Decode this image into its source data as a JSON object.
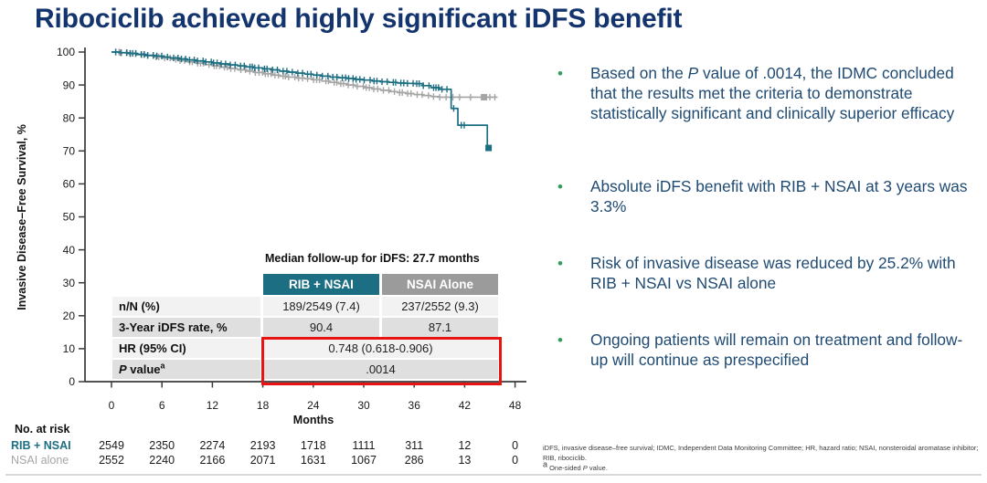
{
  "slide": {
    "title": "Ribociclib achieved highly significant iDFS benefit"
  },
  "colors": {
    "title_navy": "#14346E",
    "bullet_text_navy": "#1F4A72",
    "bullet_dot_green": "#2F9E5F",
    "rib_teal": "#1C6E82",
    "nsai_gray": "#A5A5A5",
    "header_gray": "#9B9B9B",
    "row_light": "#F2F2F2",
    "row_dark": "#DFDFDF",
    "highlight_red": "#E81313",
    "axis_black": "#3A3A3A"
  },
  "chart_data": {
    "type": "line",
    "subtype": "kaplan-meier-step",
    "title": "",
    "xlabel": "Months",
    "ylabel": "Invasive Disease–Free Survival, %",
    "xlim": [
      0,
      48
    ],
    "ylim": [
      0,
      100
    ],
    "xticks": [
      0,
      6,
      12,
      18,
      24,
      30,
      36,
      42,
      48
    ],
    "yticks": [
      0,
      10,
      20,
      30,
      40,
      50,
      60,
      70,
      80,
      90,
      100
    ],
    "grid": false,
    "legend_position": "none",
    "series": [
      {
        "name": "NSAI alone",
        "color": "#A5A5A5",
        "steps": [
          [
            0,
            100
          ],
          [
            1,
            99.8
          ],
          [
            2,
            99.5
          ],
          [
            3,
            99.2
          ],
          [
            4,
            98.9
          ],
          [
            5,
            98.5
          ],
          [
            6,
            98.2
          ],
          [
            7,
            97.8
          ],
          [
            8,
            97.4
          ],
          [
            9,
            97.0
          ],
          [
            10,
            96.6
          ],
          [
            11,
            96.2
          ],
          [
            12,
            95.8
          ],
          [
            13,
            95.4
          ],
          [
            14,
            95.0
          ],
          [
            15,
            94.6
          ],
          [
            16,
            94.2
          ],
          [
            17,
            93.8
          ],
          [
            18,
            93.4
          ],
          [
            19,
            93.0
          ],
          [
            20,
            92.7
          ],
          [
            21,
            92.4
          ],
          [
            22,
            92.1
          ],
          [
            23,
            91.9
          ],
          [
            24,
            91.6
          ],
          [
            25,
            91.2
          ],
          [
            26,
            90.8
          ],
          [
            27,
            90.4
          ],
          [
            28,
            90.0
          ],
          [
            29,
            89.6
          ],
          [
            30,
            89.2
          ],
          [
            31,
            88.8
          ],
          [
            32,
            88.4
          ],
          [
            33,
            88.0
          ],
          [
            34,
            87.7
          ],
          [
            35,
            87.4
          ],
          [
            36,
            87.1
          ],
          [
            37,
            86.8
          ],
          [
            38,
            86.5
          ],
          [
            39,
            86.3
          ],
          [
            45.8,
            86.3
          ]
        ],
        "censor_dense_range": [
          0.5,
          39.2
        ],
        "censor_tail_months": [
          39.8,
          40.6,
          41.4,
          42.7,
          45.0,
          45.6
        ],
        "end_marker": {
          "month": 44.3,
          "value": 86.3
        },
        "value_at_36_months_pct": 87.1
      },
      {
        "name": "RIB + NSAI",
        "color": "#1C6E82",
        "steps": [
          [
            0,
            100
          ],
          [
            1,
            99.8
          ],
          [
            2,
            99.6
          ],
          [
            3,
            99.3
          ],
          [
            4,
            99.0
          ],
          [
            5,
            98.8
          ],
          [
            6,
            98.5
          ],
          [
            7,
            98.2
          ],
          [
            8,
            97.9
          ],
          [
            9,
            97.6
          ],
          [
            10,
            97.3
          ],
          [
            11,
            97.0
          ],
          [
            12,
            96.7
          ],
          [
            13,
            96.4
          ],
          [
            14,
            96.1
          ],
          [
            15,
            95.8
          ],
          [
            16,
            95.5
          ],
          [
            17,
            95.2
          ],
          [
            18,
            94.9
          ],
          [
            19,
            94.6
          ],
          [
            20,
            94.2
          ],
          [
            21,
            93.9
          ],
          [
            22,
            93.6
          ],
          [
            23,
            93.3
          ],
          [
            24,
            93.0
          ],
          [
            25,
            92.7
          ],
          [
            26,
            92.4
          ],
          [
            27,
            92.2
          ],
          [
            28,
            92.0
          ],
          [
            29,
            91.7
          ],
          [
            30,
            91.5
          ],
          [
            31,
            91.2
          ],
          [
            32,
            91.0
          ],
          [
            33,
            90.8
          ],
          [
            34,
            90.6
          ],
          [
            35,
            90.5
          ],
          [
            36,
            90.4
          ],
          [
            37,
            89.8
          ],
          [
            38,
            89.2
          ],
          [
            39,
            88.7
          ],
          [
            40.4,
            82.9
          ],
          [
            41.2,
            77.8
          ],
          [
            44.7,
            70.9
          ],
          [
            45.0,
            70.9
          ]
        ],
        "censor_dense_range": [
          0.5,
          39.6
        ],
        "censor_tail_months": [
          39.9,
          40.7,
          41.6,
          41.95
        ],
        "end_marker": {
          "month": 44.85,
          "value": 70.9
        },
        "value_at_36_months_pct": 90.4
      }
    ]
  },
  "summary_table": {
    "caption": "Median follow-up for iDFS: 27.7 months",
    "columns": [
      "RIB + NSAI",
      "NSAI Alone"
    ],
    "rows": [
      {
        "label_segments": [
          {
            "t": "n/N (%)"
          }
        ],
        "values": [
          "189/2549 (7.4)",
          "237/2552 (9.3)"
        ],
        "span": false
      },
      {
        "label_segments": [
          {
            "t": "3-Year iDFS rate, %"
          }
        ],
        "values": [
          "90.4",
          "87.1"
        ],
        "span": false
      },
      {
        "label_segments": [
          {
            "t": "HR (95% CI)"
          }
        ],
        "values": [
          "0.748 (0.618-0.906)"
        ],
        "span": true
      },
      {
        "label_segments": [
          {
            "t": "P",
            "i": true
          },
          {
            "t": " value"
          },
          {
            "t": "a",
            "sup": true
          }
        ],
        "values": [
          ".0014"
        ],
        "span": true
      }
    ],
    "highlighted_row_indexes": [
      2,
      3
    ]
  },
  "at_risk": {
    "heading": "No. at risk",
    "tick_months": [
      0,
      6,
      12,
      18,
      24,
      30,
      36,
      42,
      48
    ],
    "rows": [
      {
        "label": "RIB + NSAI",
        "color": "#1C6E82",
        "bold": true,
        "values": [
          "2549",
          "2350",
          "2274",
          "2193",
          "1718",
          "1111",
          "311",
          "12",
          "0"
        ]
      },
      {
        "label": "NSAI alone",
        "color": "#A5A5A5",
        "bold": false,
        "values": [
          "2552",
          "2240",
          "2166",
          "2071",
          "1631",
          "1067",
          "286",
          "13",
          "0"
        ]
      }
    ]
  },
  "bullets": [
    {
      "segments": [
        {
          "t": "Based on the "
        },
        {
          "t": "P",
          "i": true
        },
        {
          "t": " value of .0014, the IDMC concluded that the results met the criteria to demonstrate statistically significant and clinically superior efficacy"
        }
      ]
    },
    {
      "segments": [
        {
          "t": "Absolute iDFS benefit with RIB + NSAI at 3 years was 3.3%"
        }
      ]
    },
    {
      "segments": [
        {
          "t": "Risk of invasive disease was reduced by 25.2% with RIB + NSAI vs NSAI alone"
        }
      ]
    },
    {
      "segments": [
        {
          "t": "Ongoing patients will remain on treatment and follow-up will continue as prespecified"
        }
      ]
    }
  ],
  "footnote": {
    "line1": "iDFS, invasive disease–free survival; IDMC, Independent Data Monitoring Committee; HR, hazard ratio; NSAI, nonsteroidal aromatase inhibitor; RIB, ribociclib.",
    "line2_segments": [
      {
        "t": "a",
        "sup": true
      },
      {
        "t": " One-sided "
      },
      {
        "t": "P",
        "i": true
      },
      {
        "t": " value."
      }
    ]
  }
}
